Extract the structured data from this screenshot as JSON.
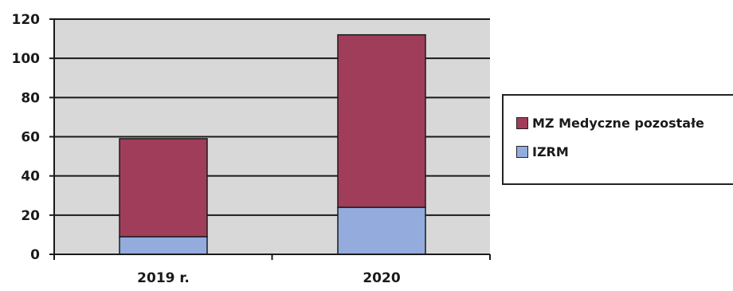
{
  "chart_data": {
    "type": "bar",
    "stacked": true,
    "categories": [
      "2019 r.",
      "2020"
    ],
    "series": [
      {
        "name": "IZRM",
        "values": [
          9,
          24
        ],
        "color": "#93ACDD"
      },
      {
        "name": "MZ Medyczne pozostałe",
        "values": [
          50,
          88
        ],
        "color": "#A03D5A"
      }
    ],
    "yticks": [
      "0",
      "20",
      "40",
      "60",
      "80",
      "100",
      "120"
    ],
    "ylim": [
      0,
      120
    ],
    "grid": true,
    "legend_position": "right",
    "plot_background": "#D8D8D8",
    "title": "",
    "xlabel": "",
    "ylabel": ""
  },
  "legend": {
    "items": [
      {
        "label": "MZ Medyczne pozostałe",
        "color": "#A03D5A"
      },
      {
        "label": "IZRM",
        "color": "#93ACDD"
      }
    ]
  }
}
